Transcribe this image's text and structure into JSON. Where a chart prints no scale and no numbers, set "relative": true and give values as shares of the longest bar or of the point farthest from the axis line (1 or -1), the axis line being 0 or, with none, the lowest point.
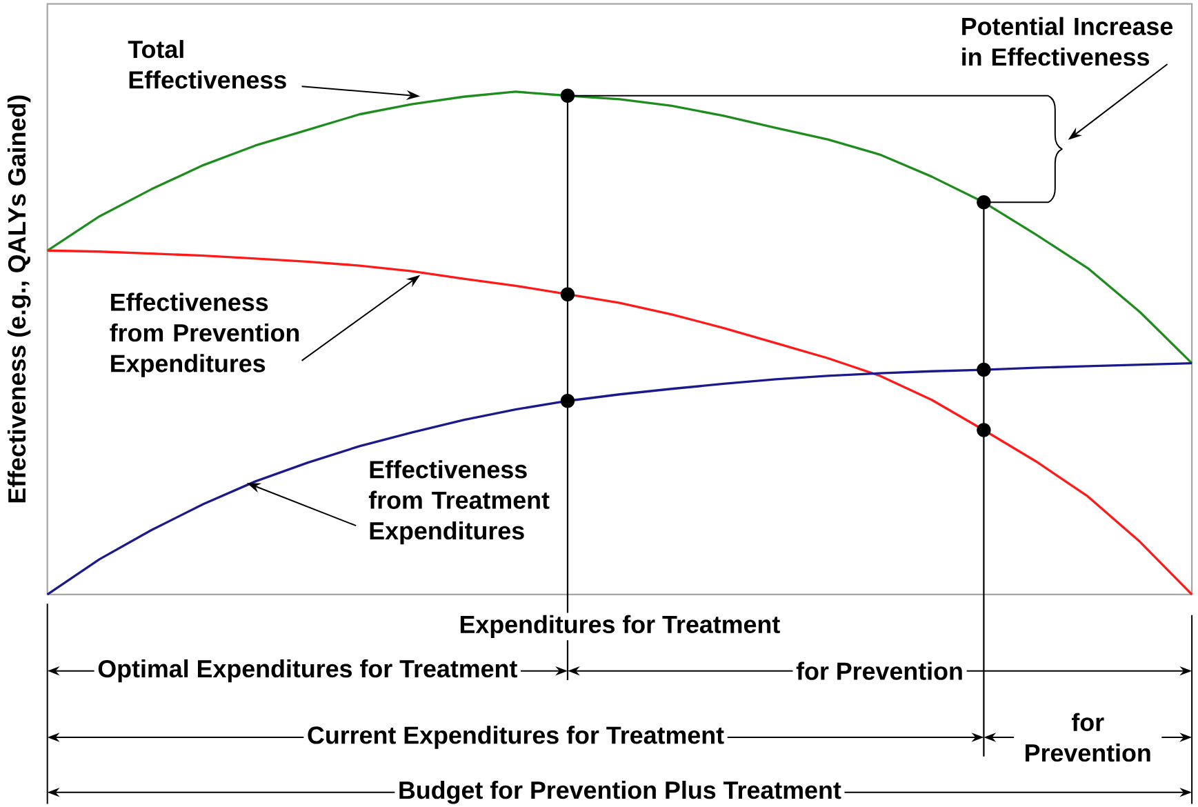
{
  "chart_data": {
    "type": "line",
    "relative": true,
    "ylabel": "Effectiveness (e.g., QALYs Gained)",
    "categories": [
      null,
      null,
      null,
      null,
      null,
      null,
      null,
      null,
      null,
      null,
      null,
      null,
      null,
      null,
      null,
      null,
      null,
      null,
      null,
      null,
      null,
      null,
      null
    ],
    "series": [
      {
        "color": "#1e8c1e",
        "values": [
          0.684,
          0.752,
          0.806,
          0.854,
          0.893,
          0.924,
          0.955,
          0.975,
          0.99,
          1,
          0.992,
          0.985,
          0.972,
          0.952,
          0.928,
          0.905,
          0.875,
          0.831,
          0.78,
          0.716,
          0.649,
          0.562,
          0.46
        ]
      },
      {
        "color": "#ff1a1a",
        "values": [
          0.684,
          0.682,
          0.678,
          0.674,
          0.668,
          0.662,
          0.654,
          0.643,
          0.628,
          0.614,
          0.597,
          0.58,
          0.557,
          0.53,
          0.5,
          0.47,
          0.435,
          0.387,
          0.327,
          0.265,
          0.195,
          0.105,
          0
        ]
      },
      {
        "color": "#1a1a8c",
        "values": [
          0,
          0.07,
          0.128,
          0.18,
          0.225,
          0.262,
          0.295,
          0.322,
          0.347,
          0.368,
          0.385,
          0.398,
          0.409,
          0.419,
          0.428,
          0.435,
          0.44,
          0.444,
          0.447,
          0.451,
          0.454,
          0.457,
          0.46
        ]
      }
    ],
    "annotations": [
      "Total Effectiveness",
      "Effectiveness from Prevention Expenditures",
      "Effectiveness from Treatment Expenditures",
      "Potential Increase in Effectiveness",
      "Expenditures for Treatment",
      "Optimal Expenditures for Treatment",
      "for Prevention",
      "Current Expenditures for Treatment",
      "for Prevention",
      "Budget for Prevention Plus Treatment"
    ]
  }
}
